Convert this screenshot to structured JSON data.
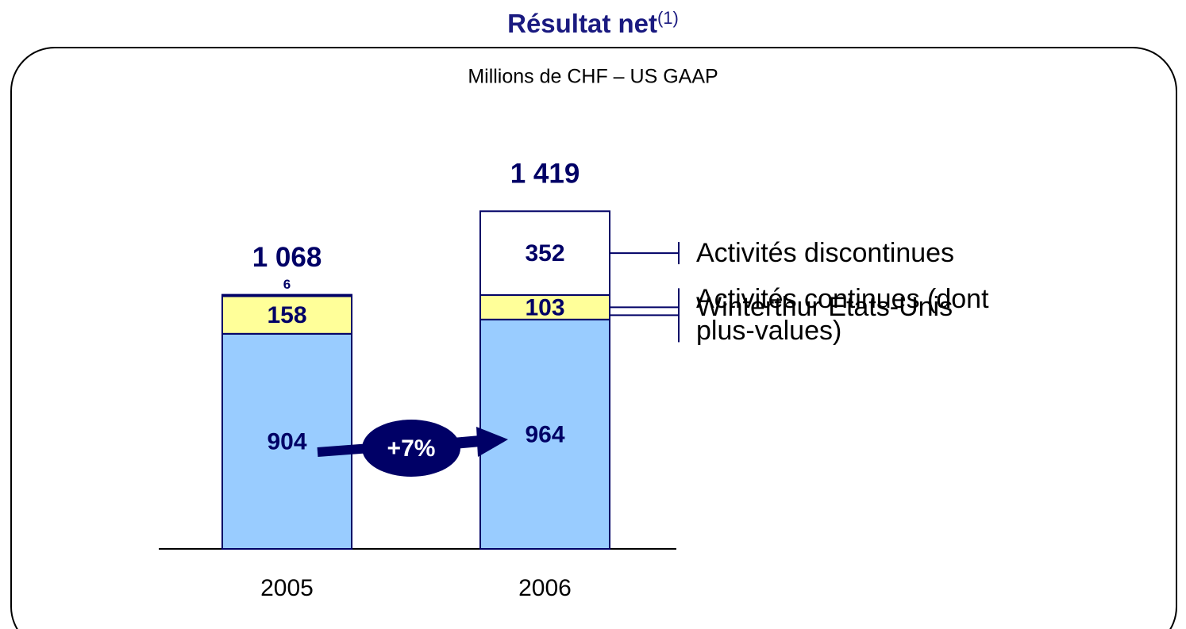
{
  "chart_data": {
    "type": "stacked_bar",
    "title": "Résultat net",
    "title_note": "(1)",
    "subtitle": "Millions de CHF – US GAAP",
    "categories": [
      "2005",
      "2006"
    ],
    "series": [
      {
        "name": "Activités continues (dont plus-values)",
        "color": "#99ccff",
        "values": [
          904,
          964
        ]
      },
      {
        "name": "Winterthur Etats-Unis",
        "color": "#ffff99",
        "values": [
          158,
          103
        ]
      },
      {
        "name": "Activités discontinues",
        "color": "#ffffff",
        "values": [
          6,
          352
        ]
      }
    ],
    "totals": {
      "values": [
        1068,
        1419
      ],
      "value_labels": [
        "1 068",
        "1 419"
      ]
    },
    "annotation": "+7%",
    "edge_color": "#000066"
  }
}
